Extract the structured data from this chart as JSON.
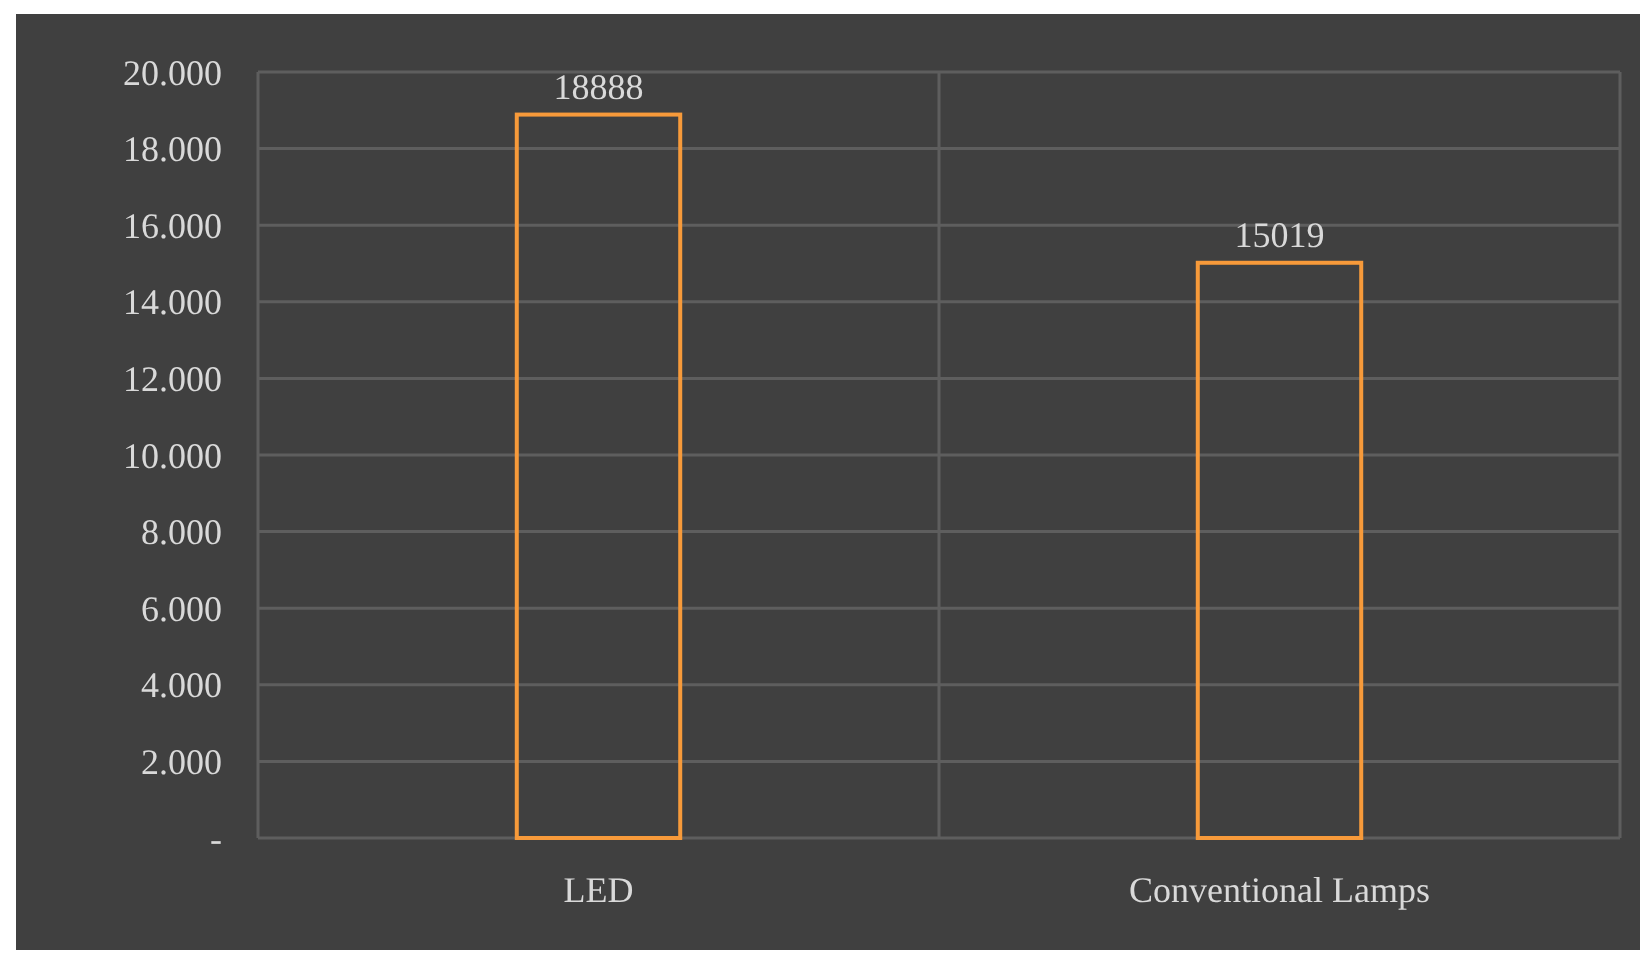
{
  "chart_data": {
    "type": "bar",
    "categories": [
      "LED",
      "Conventional Lamps"
    ],
    "values": [
      18888,
      15019
    ],
    "color": "#f79a3a",
    "ylim": [
      0,
      20000
    ],
    "yticks": [
      {
        "value": 0,
        "label": "-"
      },
      {
        "value": 2000,
        "label": "2.000"
      },
      {
        "value": 4000,
        "label": "4.000"
      },
      {
        "value": 6000,
        "label": "6.000"
      },
      {
        "value": 8000,
        "label": "8.000"
      },
      {
        "value": 10000,
        "label": "10.000"
      },
      {
        "value": 12000,
        "label": "12.000"
      },
      {
        "value": 14000,
        "label": "14.000"
      },
      {
        "value": 16000,
        "label": "16.000"
      },
      {
        "value": 18000,
        "label": "18.000"
      },
      {
        "value": 20000,
        "label": "20.000"
      }
    ],
    "grid": true,
    "data_labels": true
  }
}
